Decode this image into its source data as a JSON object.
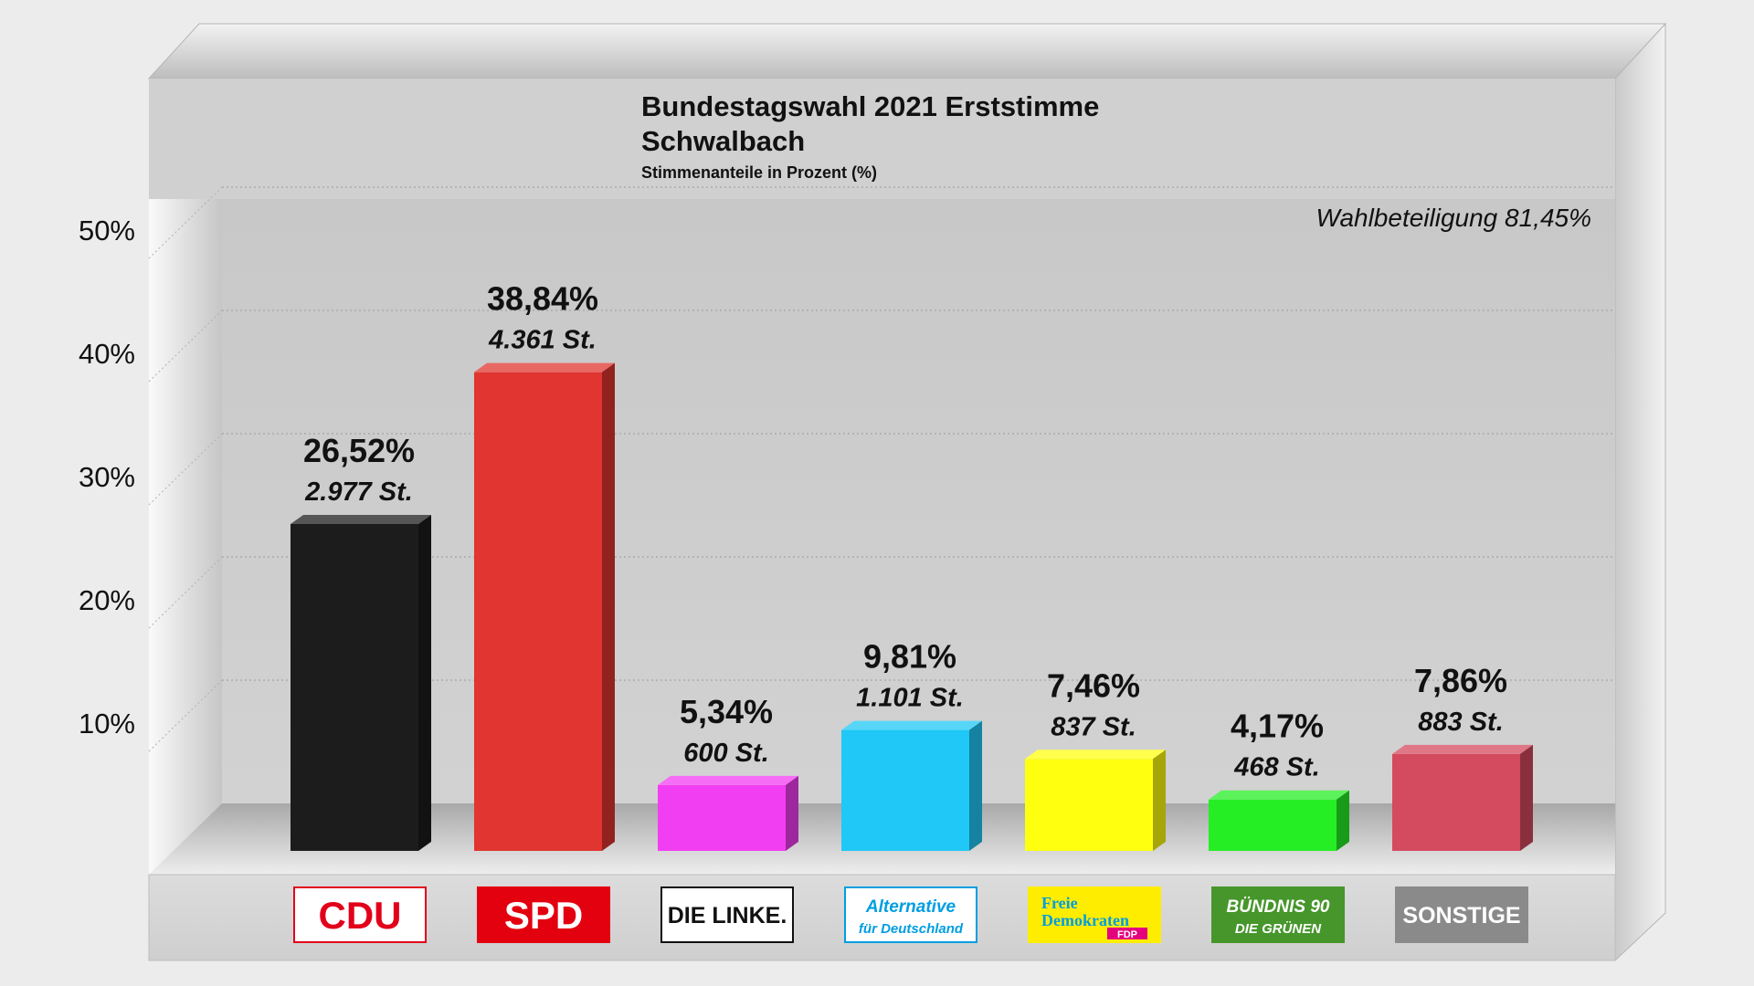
{
  "chart_data": {
    "type": "bar",
    "title": "Bundestagswahl 2021 Erststimme",
    "subtitle": "Schwalbach",
    "caption": "Stimmenanteile in Prozent (%)",
    "annotation": "Wahlbeteiligung 81,45%",
    "ylim": [
      0,
      50
    ],
    "yticks": [
      10,
      20,
      30,
      40,
      50
    ],
    "ytick_labels": [
      "10%",
      "20%",
      "30%",
      "40%",
      "50%"
    ],
    "grid": true,
    "categories": [
      "CDU",
      "SPD",
      "DIE LINKE.",
      "Alternative für Deutschland",
      "Freie Demokraten FDP",
      "BÜNDNIS 90 DIE GRÜNEN",
      "SONSTIGE"
    ],
    "values": [
      26.52,
      38.84,
      5.34,
      9.81,
      7.46,
      4.17,
      7.86
    ],
    "value_labels": [
      "26,52%",
      "38,84%",
      "5,34%",
      "9,81%",
      "7,46%",
      "4,17%",
      "7,86%"
    ],
    "votes": [
      "2.977 St.",
      "4.361 St.",
      "600 St.",
      "1.101 St.",
      "837 St.",
      "468 St.",
      "883 St."
    ],
    "colors": [
      "#1c1c1c",
      "#e03530",
      "#f23ef2",
      "#1fc8f6",
      "#ffff10",
      "#25ee25",
      "#d44a5e"
    ]
  },
  "logos": [
    {
      "name": "cdu-logo",
      "text": "CDU",
      "bg": "#ffffff",
      "fg": "#e2001a",
      "border": "#e2001a"
    },
    {
      "name": "spd-logo",
      "text": "SPD",
      "bg": "#e3000f",
      "fg": "#ffffff",
      "border": "#e3000f"
    },
    {
      "name": "linke-logo",
      "text": "DIE LINKE.",
      "bg": "#ffffff",
      "fg": "#111111",
      "border": "#111111"
    },
    {
      "name": "afd-logo",
      "text": "Alternative",
      "text2": "für Deutschland",
      "bg": "#ffffff",
      "fg": "#009ee0",
      "border": "#009ee0"
    },
    {
      "name": "fdp-logo",
      "text": "Freie",
      "text2": "Demokraten",
      "text3": "FDP",
      "bg": "#ffed00",
      "fg": "#009ee0",
      "border": "#ffed00"
    },
    {
      "name": "gruene-logo",
      "text": "BÜNDNIS 90",
      "text2": "DIE GRÜNEN",
      "bg": "#46962b",
      "fg": "#ffffff",
      "border": "#46962b"
    },
    {
      "name": "sonstige-logo",
      "text": "SONSTIGE",
      "bg": "#8a8a8a",
      "fg": "#ffffff",
      "border": "#8a8a8a"
    }
  ]
}
